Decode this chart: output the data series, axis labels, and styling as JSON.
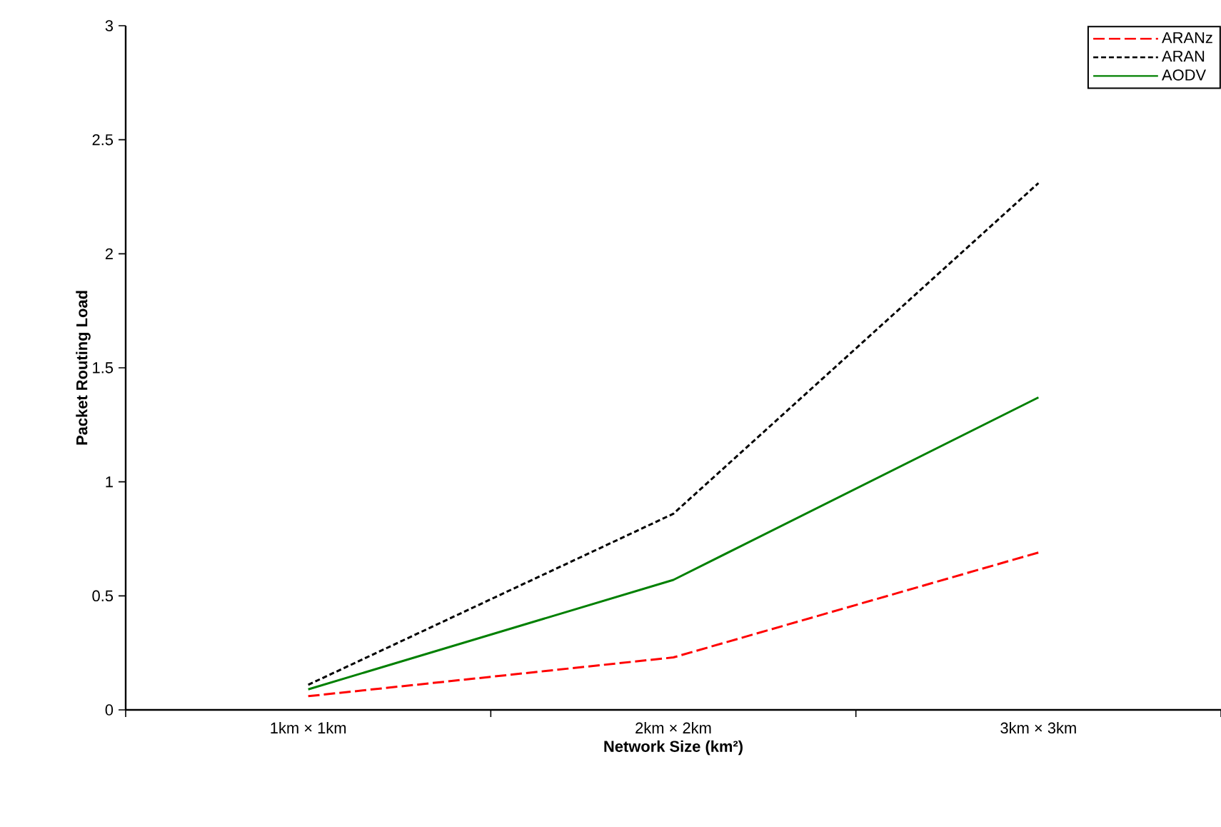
{
  "chart_data": {
    "type": "line",
    "xlabel": "Network Size (km²)",
    "ylabel": "Packet Routing Load",
    "categories": [
      "1km × 1km",
      "2km × 2km",
      "3km × 3km"
    ],
    "series": [
      {
        "name": "ARANz",
        "color": "#ff0000",
        "line_style": "dashed",
        "values": [
          0.06,
          0.23,
          0.69
        ]
      },
      {
        "name": "ARAN",
        "color": "#000000",
        "line_style": "dotted",
        "values": [
          0.11,
          0.86,
          2.31
        ]
      },
      {
        "name": "AODV",
        "color": "#008000",
        "line_style": "solid",
        "values": [
          0.09,
          0.57,
          1.37
        ]
      }
    ],
    "ylim": [
      0,
      3
    ],
    "yticks": [
      0,
      0.5,
      1,
      1.5,
      2,
      2.5,
      3
    ],
    "grid": false,
    "legend": "top right"
  }
}
